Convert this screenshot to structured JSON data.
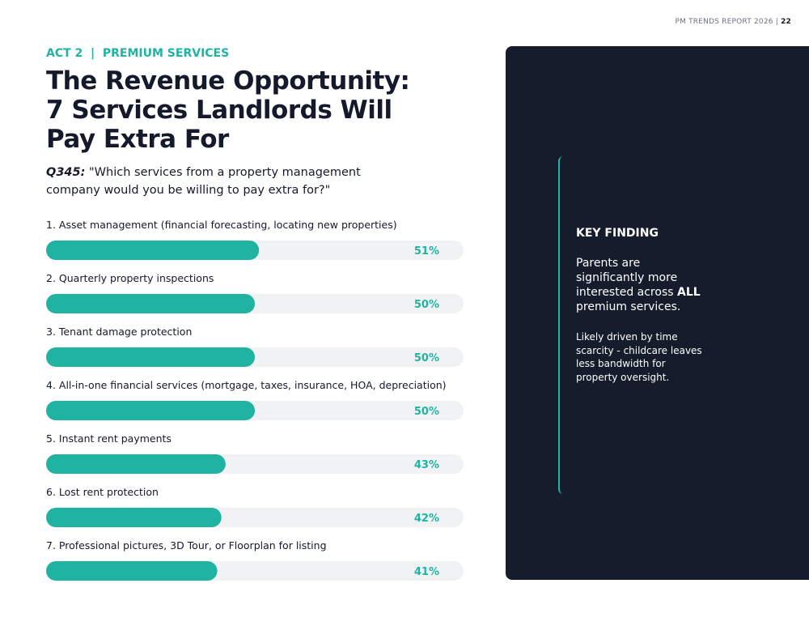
{
  "header": {
    "report_name": "PM TRENDS REPORT 2026",
    "page_number": "22"
  },
  "eyebrow": {
    "act": "ACT 2",
    "section": "PREMIUM SERVICES"
  },
  "title_lines": [
    "The Revenue Opportunity:",
    "7 Services Landlords Will",
    "Pay Extra For"
  ],
  "question": {
    "label": "Q345:",
    "text": "\"Which services from a property management company would you be willing to pay extra for?\""
  },
  "chart_data": {
    "type": "bar",
    "orientation": "horizontal",
    "categories": [
      "1. Asset management (financial forecasting, locating new properties)",
      "2. Quarterly property inspections",
      "3. Tenant damage protection",
      "4. All-in-one financial services (mortgage, taxes, insurance, HOA, depreciation)",
      "5. Instant rent payments",
      "6. Lost rent protection",
      "7. Professional pictures, 3D Tour, or Floorplan for listing"
    ],
    "values": [
      51,
      50,
      50,
      50,
      43,
      42,
      41
    ],
    "value_labels": [
      "51%",
      "50%",
      "50%",
      "50%",
      "43%",
      "42%",
      "41%"
    ],
    "xlim": [
      0,
      100
    ],
    "color": "#20b3a2",
    "track_color": "#f1f2f3"
  },
  "key_finding": {
    "heading": "KEY FINDING",
    "paragraph1": {
      "before": "Parents are significantly more interested across",
      "emphasis": "ALL",
      "after": "premium services."
    },
    "paragraph2": "Likely driven by time scarcity - childcare leaves less bandwidth for property oversight."
  }
}
